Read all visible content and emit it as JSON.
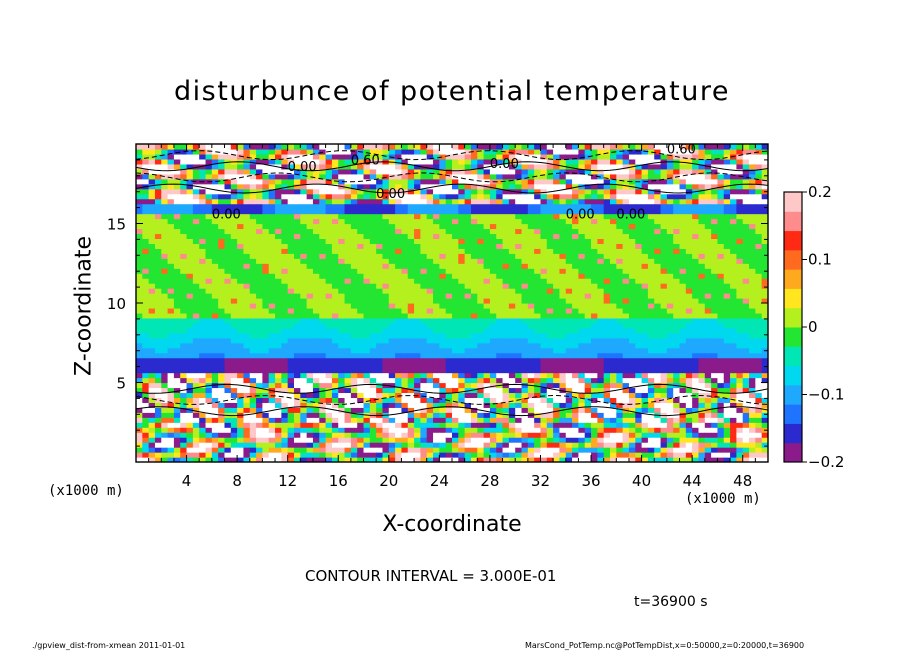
{
  "chart_data": {
    "type": "heatmap",
    "title": "disturbunce of potential temperature",
    "xlabel": "X-coordinate",
    "ylabel": "Z-coordinate",
    "x_unit_left": "(x1000 m)",
    "x_unit_right": "(x1000 m)",
    "xlim": [
      0,
      50
    ],
    "ylim": [
      0,
      20
    ],
    "x_ticks": [
      4,
      8,
      12,
      16,
      20,
      24,
      28,
      32,
      36,
      40,
      44,
      48
    ],
    "y_ticks": [
      5,
      10,
      15
    ],
    "colorbar": {
      "range": [
        -0.2,
        0.2
      ],
      "tick_values": [
        0.2,
        0.1,
        0,
        -0.1,
        -0.2
      ],
      "tick_labels": [
        "0.2",
        "0.1",
        "0",
        "−0.1",
        "−0.2"
      ],
      "colors": [
        "#8b1a8b",
        "#2a2acf",
        "#1e73ff",
        "#1ea9ff",
        "#00d8f0",
        "#00e6b4",
        "#22e632",
        "#b4f01e",
        "#ffe61e",
        "#ffaa1e",
        "#ff6a1e",
        "#ff2a14",
        "#ff8c8c",
        "#ffc8c8"
      ]
    },
    "contour_labels": [
      "0.60",
      "0.00",
      "0.60",
      "0.00",
      "0.00",
      "0.00",
      "0.00",
      "0.00"
    ],
    "contour_interval": "CONTOUR INTERVAL = 3.000E-01",
    "time": "t=36900 s",
    "bands": [
      {
        "z": [
          0,
          2.5
        ],
        "kind": "thermals"
      },
      {
        "z": [
          2.5,
          5.5
        ],
        "kind": "white-contours"
      },
      {
        "z": [
          5.5,
          6.5
        ],
        "kind": "dark-blue"
      },
      {
        "z": [
          6.5,
          9
        ],
        "kind": "cyan"
      },
      {
        "z": [
          9,
          15.5
        ],
        "kind": "green"
      },
      {
        "z": [
          15.5,
          16.3
        ],
        "kind": "blue"
      },
      {
        "z": [
          16.3,
          20
        ],
        "kind": "white-contours"
      }
    ]
  },
  "footer": {
    "left": "./gpview_dist-from-xmean  2011-01-01",
    "right": "MarsCond_PotTemp.nc@PotTempDist,x=0:50000,z=0:20000,t=36900"
  },
  "colors": {
    "axis": "#000000",
    "background": "#ffffff"
  }
}
